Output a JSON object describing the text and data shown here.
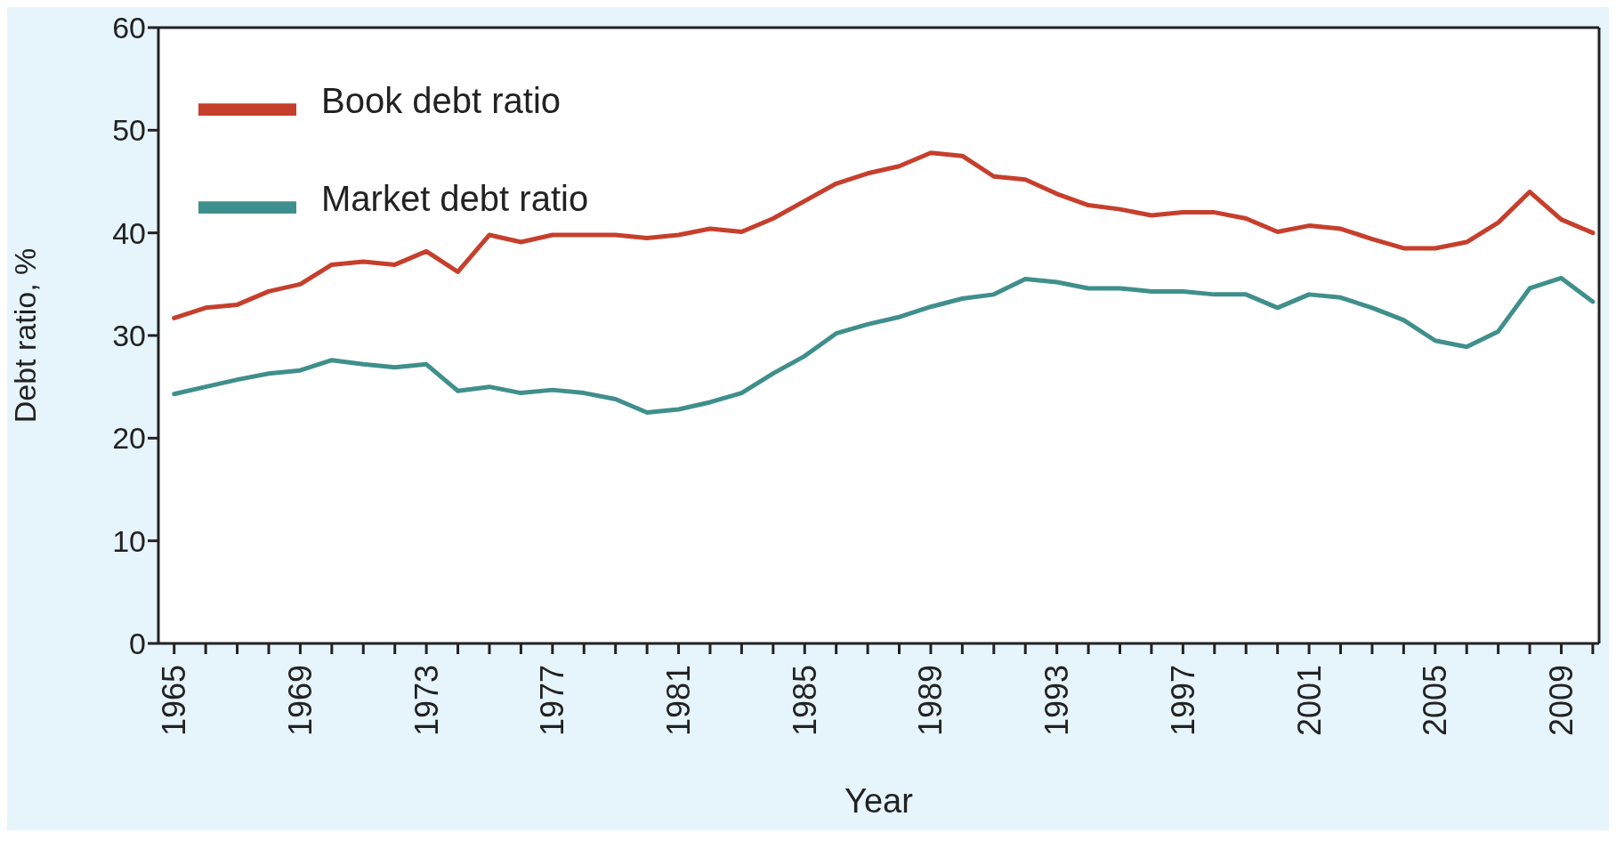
{
  "chart_data": {
    "type": "line",
    "xlabel": "Year",
    "ylabel": "Debt ratio, %",
    "x": [
      1965,
      1966,
      1967,
      1968,
      1969,
      1970,
      1971,
      1972,
      1973,
      1974,
      1975,
      1976,
      1977,
      1978,
      1979,
      1980,
      1981,
      1982,
      1983,
      1984,
      1985,
      1986,
      1987,
      1988,
      1989,
      1990,
      1991,
      1992,
      1993,
      1994,
      1995,
      1996,
      1997,
      1998,
      1999,
      2000,
      2001,
      2002,
      2003,
      2004,
      2005,
      2006,
      2007,
      2008,
      2009,
      2010
    ],
    "series": [
      {
        "name": "Book debt ratio",
        "color": "#c63f2c",
        "values": [
          31.7,
          32.7,
          33,
          34.3,
          35,
          36.9,
          37.2,
          36.9,
          38.2,
          36.2,
          39.8,
          39.1,
          39.8,
          39.8,
          39.8,
          39.5,
          39.8,
          40.4,
          40.1,
          41.4,
          43.1,
          44.8,
          45.8,
          46.5,
          47.8,
          47.5,
          45.5,
          45.2,
          43.8,
          42.7,
          42.3,
          41.7,
          42,
          42,
          41.4,
          40.1,
          40.7,
          40.4,
          39.4,
          38.5,
          38.5,
          39.1,
          41,
          44,
          41.3,
          40
        ]
      },
      {
        "name": "Market debt ratio",
        "color": "#3f8f8c",
        "values": [
          24.3,
          25,
          25.7,
          26.3,
          26.6,
          27.6,
          27.2,
          26.9,
          27.2,
          24.6,
          25,
          24.4,
          24.7,
          24.4,
          23.8,
          22.5,
          22.8,
          23.5,
          24.4,
          26.3,
          28,
          30.2,
          31.1,
          31.8,
          32.8,
          33.6,
          34,
          35.5,
          35.2,
          34.6,
          34.6,
          34.3,
          34.3,
          34,
          34,
          32.7,
          34,
          33.7,
          32.7,
          31.5,
          29.5,
          28.9,
          30.4,
          34.6,
          35.6,
          33.3
        ]
      }
    ],
    "xlim": [
      1964.5,
      2010.2
    ],
    "xticks": [
      1965,
      {
        "value": 1966,
        "label": null
      },
      {
        "value": 1967,
        "label": null
      },
      {
        "value": 1968,
        "label": null
      },
      1969,
      {
        "value": 1970,
        "label": null
      },
      {
        "value": 1971,
        "label": null
      },
      {
        "value": 1972,
        "label": null
      },
      1973,
      {
        "value": 1974,
        "label": null
      },
      {
        "value": 1975,
        "label": null
      },
      {
        "value": 1976,
        "label": null
      },
      1977,
      {
        "value": 1978,
        "label": null
      },
      {
        "value": 1979,
        "label": null
      },
      {
        "value": 1980,
        "label": null
      },
      1981,
      {
        "value": 1982,
        "label": null
      },
      {
        "value": 1983,
        "label": null
      },
      {
        "value": 1984,
        "label": null
      },
      1985,
      {
        "value": 1986,
        "label": null
      },
      {
        "value": 1987,
        "label": null
      },
      {
        "value": 1988,
        "label": null
      },
      1989,
      {
        "value": 1990,
        "label": null
      },
      {
        "value": 1991,
        "label": null
      },
      {
        "value": 1992,
        "label": null
      },
      1993,
      {
        "value": 1994,
        "label": null
      },
      {
        "value": 1995,
        "label": null
      },
      {
        "value": 1996,
        "label": null
      },
      1997,
      {
        "value": 1998,
        "label": null
      },
      {
        "value": 1999,
        "label": null
      },
      {
        "value": 2000,
        "label": null
      },
      2001,
      {
        "value": 2002,
        "label": null
      },
      {
        "value": 2003,
        "label": null
      },
      {
        "value": 2004,
        "label": null
      },
      2005,
      {
        "value": 2006,
        "label": null
      },
      {
        "value": 2007,
        "label": null
      },
      {
        "value": 2008,
        "label": null
      },
      2009,
      {
        "value": 2010,
        "label": null
      }
    ],
    "ylim": [
      0,
      60
    ],
    "yticks": [
      0,
      10,
      20,
      30,
      40,
      50,
      60
    ],
    "grid": false,
    "legend": "top left",
    "marker": "none",
    "line_style": "solid"
  }
}
